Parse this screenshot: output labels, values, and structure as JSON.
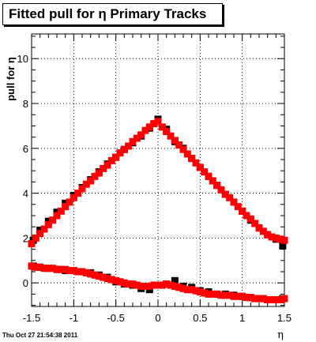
{
  "footer": "Thu Oct 27 21:54:38 2011",
  "chart_data": {
    "type": "scatter",
    "title": "Fitted pull for η  Primary Tracks",
    "xlabel": "η",
    "ylabel": "pull for η",
    "xlim": [
      -1.5,
      1.5
    ],
    "ylim": [
      -1.05,
      11.1
    ],
    "x_ticks": [
      -1.5,
      -1,
      -0.5,
      0,
      0.5,
      1,
      1.5
    ],
    "x_tick_labels": [
      "-1.5",
      "-1",
      "-0.5",
      "0",
      "0.5",
      "1",
      "1.5"
    ],
    "y_ticks": [
      0,
      2,
      4,
      6,
      8,
      10
    ],
    "y_tick_labels": [
      "0",
      "2",
      "4",
      "6",
      "8",
      "10"
    ],
    "grid": true,
    "series": [
      {
        "color": "#000000",
        "values_x": [
          -1.48,
          -1.4,
          -1.3,
          -1.2,
          -1.1,
          -1.0,
          -0.9,
          -0.8,
          -0.7,
          -0.6,
          -0.5,
          -0.4,
          -0.3,
          -0.2,
          -0.1,
          0.0,
          0.1,
          0.2,
          0.3,
          0.4,
          0.5,
          0.6,
          0.7,
          0.8,
          0.9,
          1.0,
          1.1,
          1.2,
          1.3,
          1.4,
          1.48
        ],
        "values_y": [
          1.9,
          2.35,
          2.75,
          3.15,
          3.55,
          3.9,
          4.25,
          4.6,
          4.95,
          5.3,
          5.6,
          5.95,
          6.25,
          6.55,
          6.9,
          7.3,
          6.85,
          6.3,
          6.0,
          5.55,
          5.15,
          4.75,
          4.35,
          3.95,
          3.6,
          3.2,
          2.8,
          2.45,
          2.15,
          1.95,
          1.65
        ]
      },
      {
        "color": "#000000",
        "values_x": [
          -1.48,
          -1.4,
          -1.3,
          -1.2,
          -1.1,
          -1.0,
          -0.9,
          -0.8,
          -0.7,
          -0.6,
          -0.5,
          -0.4,
          -0.3,
          -0.2,
          -0.1,
          0.0,
          0.1,
          0.2,
          0.3,
          0.4,
          0.5,
          0.6,
          0.7,
          0.8,
          0.9,
          1.0,
          1.1,
          1.2,
          1.3,
          1.4,
          1.48
        ],
        "values_y": [
          0.75,
          0.7,
          0.65,
          0.6,
          0.55,
          0.55,
          0.5,
          0.45,
          0.35,
          0.25,
          0.05,
          -0.05,
          -0.1,
          -0.25,
          -0.3,
          -0.1,
          -0.05,
          0.1,
          -0.15,
          -0.2,
          -0.35,
          -0.4,
          -0.5,
          -0.5,
          -0.55,
          -0.6,
          -0.65,
          -0.7,
          -0.75,
          -0.75,
          -0.7
        ]
      },
      {
        "color": "#ff0000",
        "values_x": [
          -1.5,
          -1.45,
          -1.4,
          -1.35,
          -1.3,
          -1.25,
          -1.2,
          -1.15,
          -1.1,
          -1.05,
          -1.0,
          -0.95,
          -0.9,
          -0.85,
          -0.8,
          -0.75,
          -0.7,
          -0.65,
          -0.6,
          -0.55,
          -0.5,
          -0.45,
          -0.4,
          -0.35,
          -0.3,
          -0.25,
          -0.2,
          -0.15,
          -0.1,
          -0.05,
          0.0,
          0.05,
          0.1,
          0.15,
          0.2,
          0.25,
          0.3,
          0.35,
          0.4,
          0.45,
          0.5,
          0.55,
          0.6,
          0.65,
          0.7,
          0.75,
          0.8,
          0.85,
          0.9,
          0.95,
          1.0,
          1.05,
          1.1,
          1.15,
          1.2,
          1.25,
          1.3,
          1.35,
          1.4,
          1.45,
          1.5
        ],
        "values_y": [
          1.75,
          2.0,
          2.2,
          2.4,
          2.6,
          2.8,
          3.0,
          3.2,
          3.4,
          3.6,
          3.8,
          4.0,
          4.2,
          4.4,
          4.55,
          4.75,
          4.9,
          5.1,
          5.25,
          5.45,
          5.6,
          5.8,
          5.95,
          6.1,
          6.3,
          6.45,
          6.6,
          6.8,
          6.95,
          7.1,
          7.2,
          6.95,
          6.75,
          6.55,
          6.35,
          6.15,
          5.95,
          5.75,
          5.55,
          5.35,
          5.15,
          4.95,
          4.75,
          4.55,
          4.35,
          4.15,
          3.95,
          3.8,
          3.6,
          3.4,
          3.2,
          3.0,
          2.85,
          2.65,
          2.45,
          2.3,
          2.15,
          2.05,
          2.0,
          1.95,
          1.9
        ]
      },
      {
        "color": "#ff0000",
        "values_x": [
          -1.5,
          -1.45,
          -1.4,
          -1.35,
          -1.3,
          -1.25,
          -1.2,
          -1.15,
          -1.1,
          -1.05,
          -1.0,
          -0.95,
          -0.9,
          -0.85,
          -0.8,
          -0.75,
          -0.7,
          -0.65,
          -0.6,
          -0.55,
          -0.5,
          -0.45,
          -0.4,
          -0.35,
          -0.3,
          -0.25,
          -0.2,
          -0.15,
          -0.1,
          -0.05,
          0.0,
          0.05,
          0.1,
          0.15,
          0.2,
          0.25,
          0.3,
          0.35,
          0.4,
          0.45,
          0.5,
          0.55,
          0.6,
          0.65,
          0.7,
          0.75,
          0.8,
          0.85,
          0.9,
          0.95,
          1.0,
          1.05,
          1.1,
          1.15,
          1.2,
          1.25,
          1.3,
          1.35,
          1.4,
          1.45,
          1.5
        ],
        "values_y": [
          0.75,
          0.7,
          0.7,
          0.65,
          0.65,
          0.65,
          0.6,
          0.6,
          0.6,
          0.55,
          0.55,
          0.5,
          0.5,
          0.45,
          0.4,
          0.35,
          0.3,
          0.25,
          0.2,
          0.15,
          0.1,
          0.05,
          0.0,
          -0.05,
          -0.05,
          -0.1,
          -0.15,
          -0.15,
          -0.15,
          -0.1,
          -0.1,
          -0.1,
          -0.05,
          -0.1,
          -0.15,
          -0.2,
          -0.25,
          -0.3,
          -0.3,
          -0.35,
          -0.4,
          -0.45,
          -0.5,
          -0.5,
          -0.5,
          -0.55,
          -0.55,
          -0.55,
          -0.6,
          -0.6,
          -0.6,
          -0.65,
          -0.65,
          -0.7,
          -0.7,
          -0.7,
          -0.75,
          -0.75,
          -0.75,
          -0.75,
          -0.7
        ]
      }
    ]
  }
}
